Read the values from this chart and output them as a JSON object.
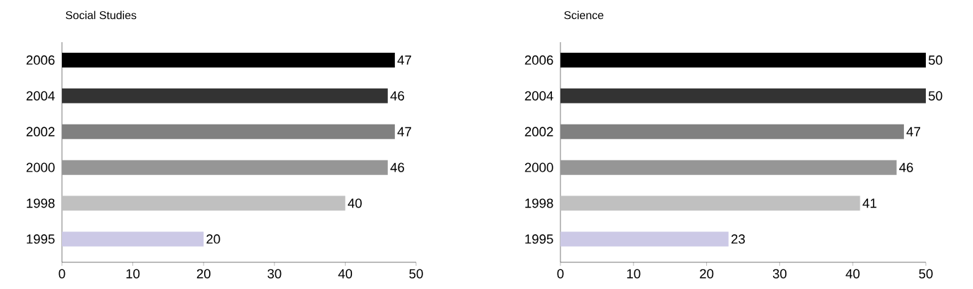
{
  "chart_data": [
    {
      "type": "bar",
      "orientation": "horizontal",
      "title": "Social Studies",
      "categories": [
        "2006",
        "2004",
        "2002",
        "2000",
        "1998",
        "1995"
      ],
      "values": [
        47,
        46,
        47,
        46,
        40,
        20
      ],
      "colors": [
        "#000000",
        "#333333",
        "#808080",
        "#969696",
        "#c0c0c0",
        "#ccc9e6"
      ],
      "xlim": [
        0,
        50
      ],
      "xticks": [
        0,
        10,
        20,
        30,
        40,
        50
      ],
      "data_labels": true
    },
    {
      "type": "bar",
      "orientation": "horizontal",
      "title": "Science",
      "categories": [
        "2006",
        "2004",
        "2002",
        "2000",
        "1998",
        "1995"
      ],
      "values": [
        50,
        50,
        47,
        46,
        41,
        23
      ],
      "colors": [
        "#000000",
        "#333333",
        "#808080",
        "#969696",
        "#c0c0c0",
        "#ccc9e6"
      ],
      "xlim": [
        0,
        50
      ],
      "xticks": [
        0,
        10,
        20,
        30,
        40,
        50
      ],
      "data_labels": true
    }
  ]
}
